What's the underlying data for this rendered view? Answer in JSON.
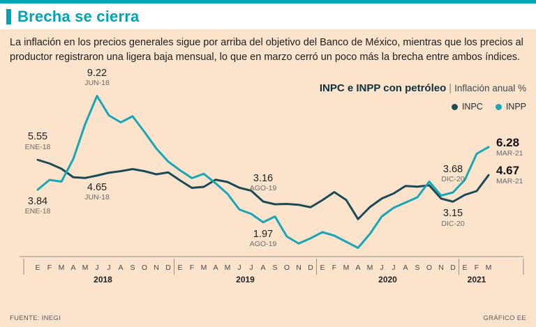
{
  "colors": {
    "accent": "#00a4b4",
    "panel": "#fbe3cc",
    "text": "#1d1d1d",
    "muted": "#5a5a5a",
    "axis": "#8f8f8f"
  },
  "page": {
    "title": "Brecha se cierra",
    "description": "La inflación en los precios generales sigue por arriba del objetivo del Banco de México, mientras que los precios al productor registraron una ligera baja mensual, lo que en marzo cerró un poco más la brecha entre ambos índices.",
    "source": "FUENTE: INEGI",
    "credit": "GRÁFICO EE"
  },
  "chart_data": {
    "type": "line",
    "title": "INPC e INPP con petróleo",
    "separator": "|",
    "subtitle": "Inflación anual %",
    "ylabel": "Inflación anual %",
    "ylim": [
      0,
      10
    ],
    "grid": false,
    "legend_position": "top-right",
    "years": [
      {
        "label": "2018",
        "months": [
          "E",
          "F",
          "M",
          "A",
          "M",
          "J",
          "J",
          "A",
          "S",
          "O",
          "N",
          "D"
        ]
      },
      {
        "label": "2019",
        "months": [
          "E",
          "F",
          "M",
          "A",
          "M",
          "J",
          "J",
          "A",
          "S",
          "O",
          "N",
          "D"
        ]
      },
      {
        "label": "2020",
        "months": [
          "E",
          "F",
          "M",
          "A",
          "M",
          "J",
          "J",
          "A",
          "S",
          "O",
          "N",
          "D"
        ]
      },
      {
        "label": "2021",
        "months": [
          "E",
          "F",
          "M"
        ]
      }
    ],
    "series": [
      {
        "name": "INPC",
        "color": "#1b4a57",
        "values": [
          5.55,
          5.34,
          5.04,
          4.55,
          4.51,
          4.65,
          4.81,
          4.9,
          5.02,
          4.9,
          4.72,
          4.83,
          4.37,
          3.94,
          4.0,
          4.41,
          4.28,
          3.95,
          3.78,
          3.16,
          3.0,
          3.02,
          2.97,
          2.83,
          3.24,
          3.7,
          3.25,
          2.15,
          2.84,
          3.33,
          3.62,
          4.05,
          4.01,
          4.09,
          3.33,
          3.15,
          3.54,
          3.76,
          4.67
        ]
      },
      {
        "name": "INPP",
        "color": "#18a5b6",
        "values": [
          3.84,
          4.4,
          4.3,
          5.6,
          7.6,
          9.22,
          8.1,
          7.7,
          8.05,
          7.15,
          6.2,
          5.45,
          4.95,
          4.5,
          4.75,
          4.2,
          3.6,
          2.7,
          2.45,
          1.97,
          2.3,
          1.15,
          0.75,
          1.05,
          1.4,
          1.2,
          0.85,
          0.5,
          1.3,
          2.3,
          2.8,
          3.1,
          3.4,
          4.3,
          3.5,
          3.68,
          4.4,
          5.9,
          6.28
        ]
      }
    ],
    "annotations": [
      {
        "value": "5.55",
        "date": "ENE-18",
        "series": 0,
        "index": 0,
        "placement": "above",
        "bold": false
      },
      {
        "value": "3.84",
        "date": "ENE-18",
        "series": 1,
        "index": 0,
        "placement": "below",
        "bold": false
      },
      {
        "value": "9.22",
        "date": "JUN-18",
        "series": 1,
        "index": 5,
        "placement": "above",
        "bold": false
      },
      {
        "value": "4.65",
        "date": "JUN-18",
        "series": 0,
        "index": 5,
        "placement": "below",
        "bold": false
      },
      {
        "value": "3.16",
        "date": "AGO-19",
        "series": 0,
        "index": 19,
        "placement": "above",
        "bold": false
      },
      {
        "value": "1.97",
        "date": "AGO-19",
        "series": 1,
        "index": 19,
        "placement": "below",
        "bold": false
      },
      {
        "value": "3.68",
        "date": "DIC-20",
        "series": 1,
        "index": 35,
        "placement": "above",
        "bold": false
      },
      {
        "value": "3.15",
        "date": "DIC-20",
        "series": 0,
        "index": 35,
        "placement": "below",
        "bold": false
      },
      {
        "value": "6.28",
        "date": "MAR-21",
        "series": 1,
        "index": 38,
        "placement": "right",
        "bold": true
      },
      {
        "value": "4.67",
        "date": "MAR-21",
        "series": 0,
        "index": 38,
        "placement": "right",
        "bold": true
      }
    ]
  }
}
